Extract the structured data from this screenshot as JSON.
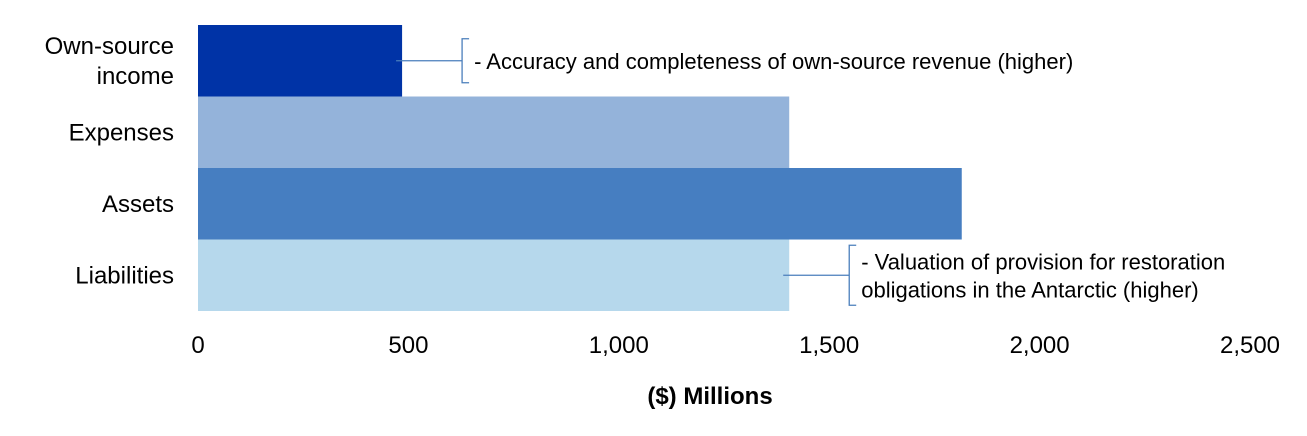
{
  "chart_data": {
    "type": "bar",
    "orientation": "horizontal",
    "categories": [
      [
        "Own-source",
        "income"
      ],
      [
        "Expenses"
      ],
      [
        "Assets"
      ],
      [
        "Liabilities"
      ]
    ],
    "values": [
      485,
      1405,
      1815,
      1405
    ],
    "colors": [
      "#0033A6",
      "#94B3DA",
      "#467EC1",
      "#B6D8EC"
    ],
    "xlabel": "($) Millions",
    "xlim": [
      0,
      2500
    ],
    "xticks": [
      0,
      500,
      1000,
      1500,
      2000,
      2500
    ],
    "xtick_labels": [
      "0",
      "500",
      "1,000",
      "1,500",
      "2,000",
      "2,500"
    ],
    "grid": false,
    "annotations": [
      {
        "category_index": 0,
        "lines": [
          "- Accuracy and completeness of own-source revenue (higher)"
        ]
      },
      {
        "category_index": 3,
        "lines": [
          "- Valuation of provision for restoration",
          "obligations in the Antarctic (higher)"
        ]
      }
    ]
  }
}
